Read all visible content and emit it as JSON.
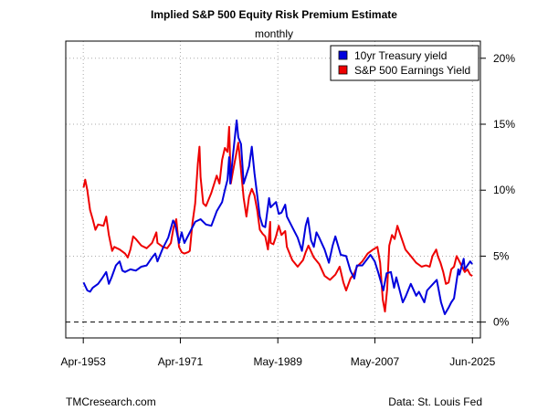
{
  "chart_data": {
    "type": "line",
    "title": "Implied S&P 500 Equity Risk Premium Estimate",
    "subtitle": "monthly",
    "x_tick_labels": [
      "Apr-1953",
      "Apr-1971",
      "May-1989",
      "May-2007",
      "Jun-2025"
    ],
    "x_ticks": [
      1953.25,
      1971.25,
      1989.33,
      2007.33,
      2025.42
    ],
    "xlim": [
      1950.0,
      2026.9
    ],
    "y_tick_labels": [
      "0%",
      "5%",
      "10%",
      "15%",
      "20%"
    ],
    "y_ticks": [
      0,
      5,
      10,
      15,
      20
    ],
    "ylim": [
      -1.2,
      21.3
    ],
    "y_axis_side": "right",
    "grid": true,
    "reference_line": {
      "y": 0,
      "style": "dashed"
    },
    "legend_position": "top-right",
    "series": [
      {
        "name": "10yr Treasury yield",
        "color": "#0000dd",
        "points": [
          [
            1953.3,
            3.0
          ],
          [
            1954.0,
            2.4
          ],
          [
            1954.5,
            2.3
          ],
          [
            1955.0,
            2.6
          ],
          [
            1956.0,
            2.9
          ],
          [
            1956.7,
            3.3
          ],
          [
            1957.5,
            3.8
          ],
          [
            1958.0,
            2.9
          ],
          [
            1958.5,
            3.4
          ],
          [
            1959.3,
            4.3
          ],
          [
            1960.0,
            4.6
          ],
          [
            1960.5,
            3.9
          ],
          [
            1961.0,
            3.8
          ],
          [
            1962.0,
            4.0
          ],
          [
            1963.0,
            3.9
          ],
          [
            1964.0,
            4.2
          ],
          [
            1965.0,
            4.3
          ],
          [
            1966.0,
            4.9
          ],
          [
            1966.6,
            5.2
          ],
          [
            1967.0,
            4.6
          ],
          [
            1968.0,
            5.6
          ],
          [
            1969.0,
            6.4
          ],
          [
            1969.9,
            7.7
          ],
          [
            1970.3,
            7.4
          ],
          [
            1971.0,
            6.0
          ],
          [
            1971.5,
            6.8
          ],
          [
            1972.0,
            6.0
          ],
          [
            1973.0,
            6.8
          ],
          [
            1974.0,
            7.6
          ],
          [
            1975.0,
            7.8
          ],
          [
            1976.0,
            7.4
          ],
          [
            1977.0,
            7.3
          ],
          [
            1978.0,
            8.4
          ],
          [
            1979.0,
            9.1
          ],
          [
            1979.5,
            10.0
          ],
          [
            1980.0,
            10.8
          ],
          [
            1980.3,
            12.5
          ],
          [
            1980.5,
            10.5
          ],
          [
            1981.0,
            12.6
          ],
          [
            1981.7,
            15.3
          ],
          [
            1982.0,
            14.0
          ],
          [
            1982.5,
            13.5
          ],
          [
            1983.0,
            10.5
          ],
          [
            1984.0,
            11.8
          ],
          [
            1984.5,
            13.3
          ],
          [
            1985.0,
            11.3
          ],
          [
            1986.0,
            8.0
          ],
          [
            1986.5,
            7.3
          ],
          [
            1987.0,
            7.2
          ],
          [
            1987.7,
            9.4
          ],
          [
            1988.0,
            8.7
          ],
          [
            1989.0,
            9.1
          ],
          [
            1989.5,
            8.2
          ],
          [
            1990.0,
            8.3
          ],
          [
            1990.7,
            8.9
          ],
          [
            1991.0,
            8.0
          ],
          [
            1992.0,
            7.2
          ],
          [
            1993.0,
            6.4
          ],
          [
            1993.8,
            5.4
          ],
          [
            1994.5,
            7.3
          ],
          [
            1994.9,
            7.9
          ],
          [
            1995.5,
            6.2
          ],
          [
            1996.0,
            5.7
          ],
          [
            1996.5,
            6.8
          ],
          [
            1997.0,
            6.4
          ],
          [
            1998.0,
            5.5
          ],
          [
            1998.8,
            4.5
          ],
          [
            1999.5,
            5.8
          ],
          [
            2000.0,
            6.5
          ],
          [
            2001.0,
            5.1
          ],
          [
            2002.0,
            5.0
          ],
          [
            2002.8,
            3.9
          ],
          [
            2003.5,
            3.3
          ],
          [
            2004.0,
            4.3
          ],
          [
            2005.0,
            4.3
          ],
          [
            2006.5,
            5.1
          ],
          [
            2007.3,
            4.6
          ],
          [
            2008.0,
            3.7
          ],
          [
            2008.9,
            2.4
          ],
          [
            2009.5,
            3.7
          ],
          [
            2010.3,
            3.8
          ],
          [
            2010.9,
            2.6
          ],
          [
            2011.3,
            3.4
          ],
          [
            2012.5,
            1.5
          ],
          [
            2013.0,
            1.9
          ],
          [
            2014.0,
            2.9
          ],
          [
            2015.0,
            2.0
          ],
          [
            2015.5,
            2.3
          ],
          [
            2016.5,
            1.5
          ],
          [
            2017.0,
            2.4
          ],
          [
            2018.8,
            3.2
          ],
          [
            2019.6,
            1.5
          ],
          [
            2020.3,
            0.6
          ],
          [
            2021.0,
            1.1
          ],
          [
            2021.5,
            1.5
          ],
          [
            2022.0,
            1.8
          ],
          [
            2022.8,
            4.0
          ],
          [
            2023.0,
            3.6
          ],
          [
            2023.8,
            4.8
          ],
          [
            2024.0,
            4.0
          ],
          [
            2024.5,
            4.3
          ],
          [
            2025.0,
            4.6
          ],
          [
            2025.4,
            4.4
          ]
        ]
      },
      {
        "name": "S&P 500 Earnings Yield",
        "color": "#ee0000",
        "points": [
          [
            1953.3,
            10.2
          ],
          [
            1953.6,
            10.8
          ],
          [
            1954.0,
            10.0
          ],
          [
            1954.5,
            8.5
          ],
          [
            1955.0,
            7.8
          ],
          [
            1955.5,
            7.0
          ],
          [
            1956.0,
            7.4
          ],
          [
            1957.0,
            7.3
          ],
          [
            1957.5,
            8.0
          ],
          [
            1958.0,
            6.6
          ],
          [
            1958.6,
            5.4
          ],
          [
            1959.0,
            5.7
          ],
          [
            1960.0,
            5.5
          ],
          [
            1961.0,
            5.2
          ],
          [
            1961.5,
            4.9
          ],
          [
            1962.0,
            5.5
          ],
          [
            1962.5,
            6.5
          ],
          [
            1963.0,
            6.3
          ],
          [
            1964.0,
            5.8
          ],
          [
            1965.0,
            5.6
          ],
          [
            1966.0,
            6.0
          ],
          [
            1966.8,
            6.8
          ],
          [
            1967.0,
            6.0
          ],
          [
            1968.0,
            5.7
          ],
          [
            1968.8,
            5.6
          ],
          [
            1969.5,
            6.0
          ],
          [
            1970.0,
            7.2
          ],
          [
            1970.5,
            7.8
          ],
          [
            1971.0,
            5.7
          ],
          [
            1971.5,
            5.3
          ],
          [
            1972.0,
            5.2
          ],
          [
            1972.7,
            5.3
          ],
          [
            1973.0,
            5.4
          ],
          [
            1973.5,
            7.5
          ],
          [
            1974.0,
            9.0
          ],
          [
            1974.5,
            12.0
          ],
          [
            1974.8,
            13.3
          ],
          [
            1975.0,
            11.0
          ],
          [
            1975.5,
            9.0
          ],
          [
            1976.0,
            8.8
          ],
          [
            1977.0,
            9.8
          ],
          [
            1978.0,
            11.1
          ],
          [
            1978.5,
            10.5
          ],
          [
            1979.0,
            12.3
          ],
          [
            1979.5,
            13.2
          ],
          [
            1980.0,
            12.9
          ],
          [
            1980.3,
            14.8
          ],
          [
            1980.6,
            10.5
          ],
          [
            1981.0,
            11.4
          ],
          [
            1981.5,
            12.5
          ],
          [
            1982.0,
            13.6
          ],
          [
            1982.5,
            11.5
          ],
          [
            1983.0,
            9.4
          ],
          [
            1983.5,
            8.0
          ],
          [
            1984.0,
            9.5
          ],
          [
            1984.5,
            10.1
          ],
          [
            1985.0,
            9.6
          ],
          [
            1985.5,
            8.5
          ],
          [
            1986.0,
            7.0
          ],
          [
            1986.5,
            6.7
          ],
          [
            1987.0,
            6.5
          ],
          [
            1987.5,
            5.5
          ],
          [
            1987.9,
            7.6
          ],
          [
            1988.0,
            6.0
          ],
          [
            1988.5,
            5.9
          ],
          [
            1989.0,
            6.5
          ],
          [
            1989.5,
            7.3
          ],
          [
            1990.0,
            6.6
          ],
          [
            1990.7,
            6.9
          ],
          [
            1991.0,
            5.7
          ],
          [
            1992.0,
            4.7
          ],
          [
            1993.0,
            4.2
          ],
          [
            1994.0,
            4.7
          ],
          [
            1994.5,
            5.3
          ],
          [
            1995.0,
            5.8
          ],
          [
            1996.0,
            4.9
          ],
          [
            1997.0,
            4.4
          ],
          [
            1998.0,
            3.5
          ],
          [
            1999.0,
            3.2
          ],
          [
            2000.0,
            3.6
          ],
          [
            2000.8,
            4.2
          ],
          [
            2001.5,
            3.0
          ],
          [
            2002.0,
            2.4
          ],
          [
            2002.8,
            3.3
          ],
          [
            2003.5,
            3.7
          ],
          [
            2004.0,
            4.2
          ],
          [
            2005.0,
            4.6
          ],
          [
            2006.0,
            5.2
          ],
          [
            2007.0,
            5.5
          ],
          [
            2007.8,
            5.7
          ],
          [
            2008.3,
            4.5
          ],
          [
            2008.8,
            1.7
          ],
          [
            2009.2,
            0.8
          ],
          [
            2009.6,
            2.5
          ],
          [
            2010.0,
            5.8
          ],
          [
            2010.5,
            6.6
          ],
          [
            2011.0,
            6.3
          ],
          [
            2011.5,
            7.3
          ],
          [
            2012.0,
            6.7
          ],
          [
            2013.0,
            5.5
          ],
          [
            2014.0,
            5.0
          ],
          [
            2015.0,
            4.5
          ],
          [
            2016.0,
            4.2
          ],
          [
            2016.8,
            4.3
          ],
          [
            2017.5,
            4.2
          ],
          [
            2018.0,
            5.0
          ],
          [
            2018.7,
            5.5
          ],
          [
            2019.0,
            5.0
          ],
          [
            2019.5,
            4.5
          ],
          [
            2020.0,
            3.8
          ],
          [
            2020.5,
            2.9
          ],
          [
            2021.0,
            3.0
          ],
          [
            2021.5,
            4.0
          ],
          [
            2022.0,
            4.2
          ],
          [
            2022.5,
            5.0
          ],
          [
            2023.0,
            4.6
          ],
          [
            2023.5,
            4.2
          ],
          [
            2024.0,
            3.8
          ],
          [
            2024.5,
            4.0
          ],
          [
            2025.0,
            3.6
          ],
          [
            2025.4,
            3.5
          ]
        ]
      }
    ]
  },
  "footer": {
    "source_left": "TMCresearch.com",
    "source_right": "Data: St. Louis Fed"
  }
}
